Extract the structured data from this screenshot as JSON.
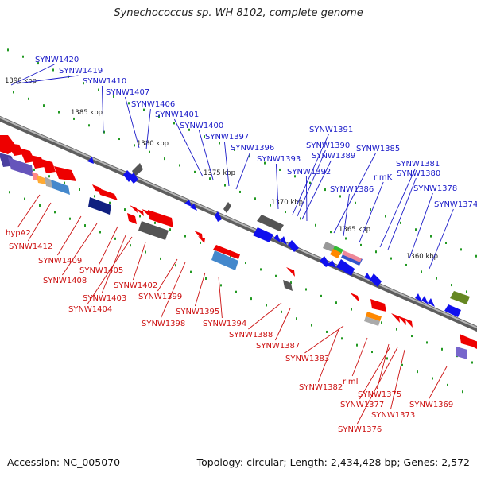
{
  "title": "Synechococcus sp. WH 8102, complete genome",
  "footer": {
    "accession": "Accession: NC_005070",
    "summary": "Topology: circular; Length: 2,434,428 bp; Genes: 2,572"
  },
  "colors": {
    "forward_label": "#1a1ac8",
    "reverse_label": "#cc1111",
    "backbone": "#888888",
    "tick": "#229922"
  },
  "scale_labels": [
    "1390 kbp",
    "1385 kbp",
    "1380 kbp",
    "1375 kbp",
    "1370 kbp",
    "1365 kbp",
    "1360 kbp"
  ],
  "forward_labels": [
    "SYNW1420",
    "SYNW1419",
    "SYNW1410",
    "SYNW1407",
    "SYNW1406",
    "SYNW1401",
    "SYNW1400",
    "SYNW1397",
    "SYNW1396",
    "SYNW1393",
    "SYNW1391",
    "SYNW1390",
    "SYNW1389",
    "SYNW1392",
    "SYNW1385",
    "SYNW1386",
    "rimK",
    "SYNW1381",
    "SYNW1380",
    "SYNW1378",
    "SYNW1374"
  ],
  "reverse_labels": [
    "hypA2",
    "SYNW1412",
    "SYNW1409",
    "SYNW1408",
    "SYNW1405",
    "SYNW1403",
    "SYNW1404",
    "SYNW1402",
    "SYNW1399",
    "SYNW1398",
    "SYNW1395",
    "SYNW1394",
    "SYNW1388",
    "SYNW1387",
    "SYNW1383",
    "SYNW1382",
    "rimI",
    "SYNW1375",
    "SYNW1377",
    "SYNW1376",
    "SYNW1373",
    "SYNW1369"
  ]
}
